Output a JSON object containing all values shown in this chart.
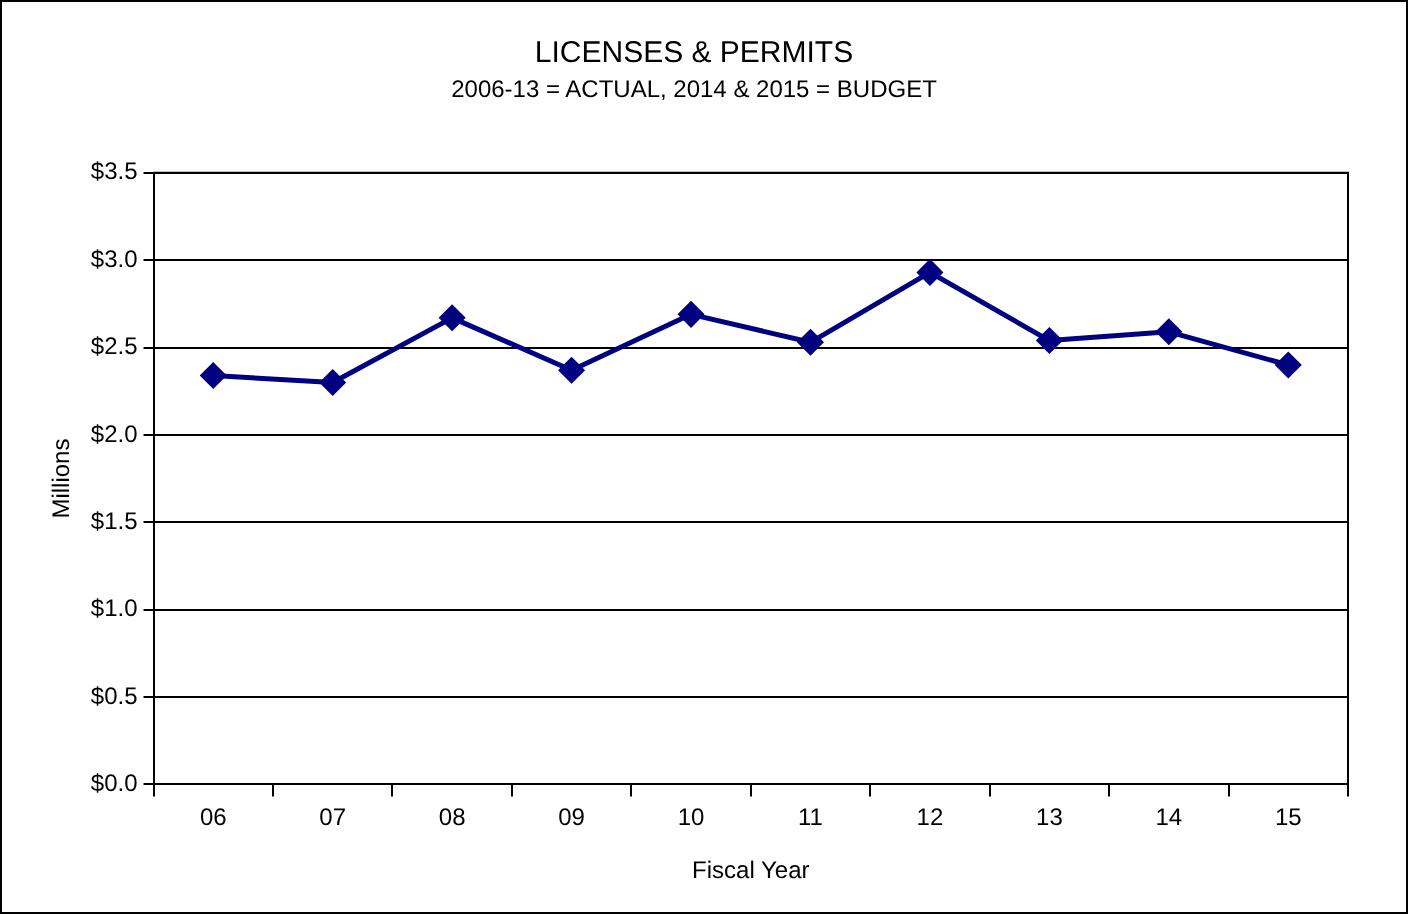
{
  "chart_data": {
    "type": "line",
    "title": "LICENSES & PERMITS",
    "subtitle": "2006-13 = ACTUAL, 2014 & 2015 = BUDGET",
    "xlabel": "Fiscal Year",
    "ylabel": "Millions",
    "categories": [
      "06",
      "07",
      "08",
      "09",
      "10",
      "11",
      "12",
      "13",
      "14",
      "15"
    ],
    "series": [
      {
        "color": "#000080",
        "values": [
          2.34,
          2.3,
          2.67,
          2.37,
          2.69,
          2.53,
          2.93,
          2.54,
          2.59,
          2.4
        ]
      }
    ],
    "ylim": [
      0,
      3.5
    ],
    "yticks": [
      {
        "value": 0,
        "label": "$0.0"
      },
      {
        "value": 0.5,
        "label": "$0.5"
      },
      {
        "value": 1,
        "label": "$1.0"
      },
      {
        "value": 1.5,
        "label": "$1.5"
      },
      {
        "value": 2,
        "label": "$2.0"
      },
      {
        "value": 2.5,
        "label": "$2.5"
      },
      {
        "value": 3,
        "label": "$3.0"
      },
      {
        "value": 3.5,
        "label": "$3.5"
      }
    ],
    "grid": "y",
    "legend": false,
    "marker": "diamond",
    "line_style": "solid"
  }
}
